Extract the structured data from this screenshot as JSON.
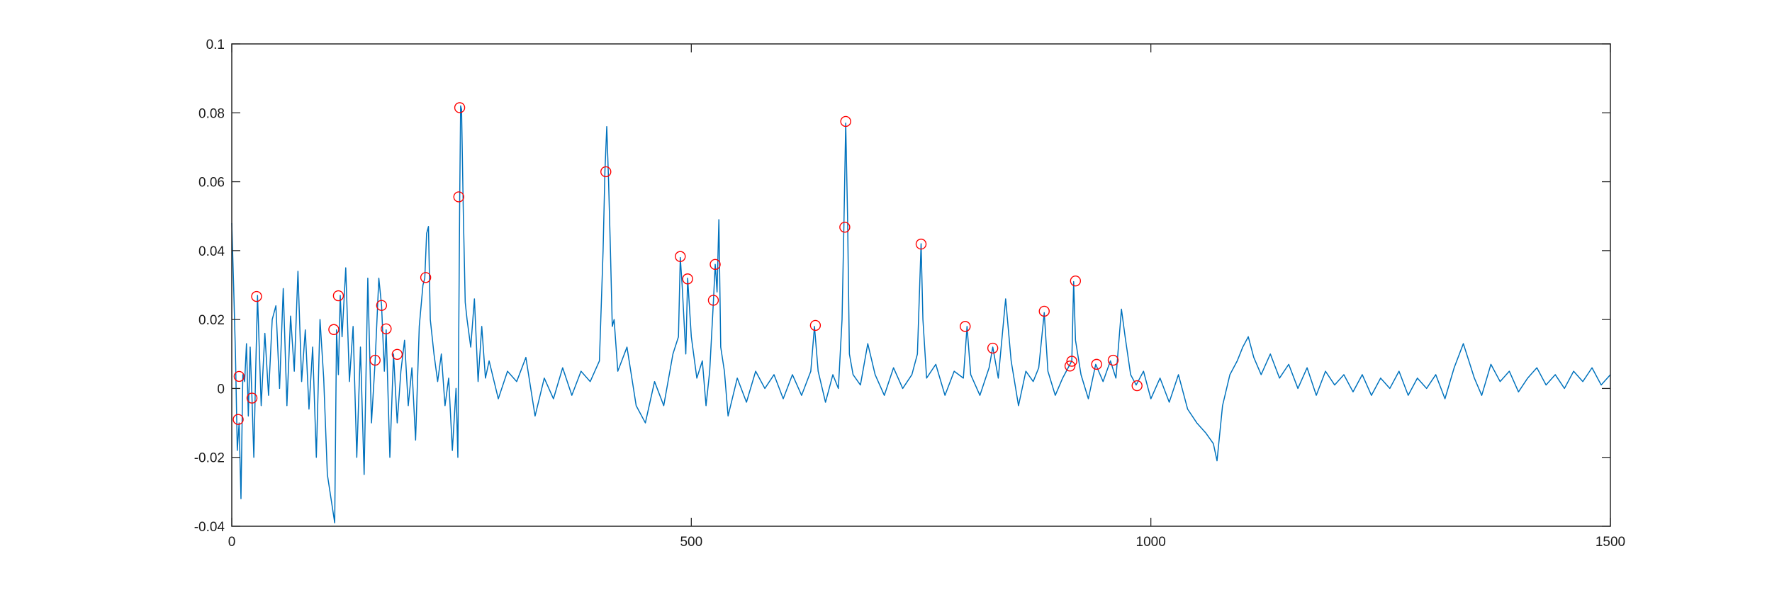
{
  "chart_data": {
    "type": "line",
    "title": "",
    "xlabel": "",
    "ylabel": "",
    "xlim": [
      0,
      1500
    ],
    "ylim": [
      -0.04,
      0.1
    ],
    "xticks": [
      0,
      500,
      1000,
      1500
    ],
    "yticks": [
      -0.04,
      -0.02,
      0,
      0.02,
      0.04,
      0.06,
      0.08,
      0.1
    ],
    "xtick_labels": [
      "0",
      "500",
      "1000",
      "1500"
    ],
    "ytick_labels": [
      "-0.04",
      "-0.02",
      "0",
      "0.02",
      "0.04",
      "0.06",
      "0.08",
      "0.1"
    ],
    "grid": false,
    "box": true,
    "colors": {
      "line": "#0072BD",
      "markers": "#FF0000",
      "axes": "#262626"
    },
    "series": [
      {
        "style": "line",
        "points": [
          [
            0,
            0.048
          ],
          [
            2,
            0.03
          ],
          [
            4,
            0.01
          ],
          [
            6,
            -0.018
          ],
          [
            8,
            -0.01
          ],
          [
            10,
            -0.032
          ],
          [
            12,
            0.004
          ],
          [
            14,
            0.002
          ],
          [
            16,
            0.013
          ],
          [
            18,
            -0.008
          ],
          [
            20,
            0.012
          ],
          [
            22,
            -0.003
          ],
          [
            24,
            -0.02
          ],
          [
            26,
            0.005
          ],
          [
            28,
            0.027
          ],
          [
            32,
            -0.005
          ],
          [
            36,
            0.016
          ],
          [
            40,
            -0.002
          ],
          [
            44,
            0.02
          ],
          [
            48,
            0.024
          ],
          [
            52,
            0.0
          ],
          [
            56,
            0.029
          ],
          [
            60,
            -0.005
          ],
          [
            64,
            0.021
          ],
          [
            68,
            0.005
          ],
          [
            72,
            0.034
          ],
          [
            76,
            0.002
          ],
          [
            80,
            0.017
          ],
          [
            84,
            -0.006
          ],
          [
            88,
            0.012
          ],
          [
            92,
            -0.02
          ],
          [
            96,
            0.02
          ],
          [
            100,
            0.003
          ],
          [
            104,
            -0.025
          ],
          [
            108,
            -0.032
          ],
          [
            112,
            -0.039
          ],
          [
            114,
            0.017
          ],
          [
            116,
            0.004
          ],
          [
            118,
            0.027
          ],
          [
            120,
            0.015
          ],
          [
            124,
            0.035
          ],
          [
            128,
            0.002
          ],
          [
            132,
            0.018
          ],
          [
            136,
            -0.02
          ],
          [
            140,
            0.012
          ],
          [
            144,
            -0.025
          ],
          [
            148,
            0.032
          ],
          [
            152,
            -0.01
          ],
          [
            156,
            0.008
          ],
          [
            160,
            0.032
          ],
          [
            163,
            0.024
          ],
          [
            166,
            0.005
          ],
          [
            168,
            0.017
          ],
          [
            172,
            -0.02
          ],
          [
            176,
            0.01
          ],
          [
            180,
            -0.01
          ],
          [
            184,
            0.005
          ],
          [
            188,
            0.014
          ],
          [
            192,
            -0.005
          ],
          [
            196,
            0.006
          ],
          [
            200,
            -0.015
          ],
          [
            204,
            0.018
          ],
          [
            208,
            0.03
          ],
          [
            210,
            0.032
          ],
          [
            212,
            0.045
          ],
          [
            214,
            0.047
          ],
          [
            216,
            0.02
          ],
          [
            220,
            0.01
          ],
          [
            224,
            0.002
          ],
          [
            228,
            0.01
          ],
          [
            232,
            -0.005
          ],
          [
            236,
            0.003
          ],
          [
            240,
            -0.018
          ],
          [
            244,
            0.0
          ],
          [
            246,
            -0.02
          ],
          [
            248,
            0.055
          ],
          [
            249,
            0.082
          ],
          [
            250,
            0.081
          ],
          [
            252,
            0.05
          ],
          [
            254,
            0.025
          ],
          [
            256,
            0.02
          ],
          [
            260,
            0.012
          ],
          [
            264,
            0.026
          ],
          [
            268,
            0.002
          ],
          [
            272,
            0.018
          ],
          [
            276,
            0.003
          ],
          [
            280,
            0.008
          ],
          [
            290,
            -0.003
          ],
          [
            300,
            0.005
          ],
          [
            310,
            0.002
          ],
          [
            320,
            0.009
          ],
          [
            330,
            -0.008
          ],
          [
            340,
            0.003
          ],
          [
            350,
            -0.003
          ],
          [
            360,
            0.006
          ],
          [
            370,
            -0.002
          ],
          [
            380,
            0.005
          ],
          [
            390,
            0.002
          ],
          [
            400,
            0.008
          ],
          [
            404,
            0.04
          ],
          [
            406,
            0.063
          ],
          [
            408,
            0.076
          ],
          [
            410,
            0.06
          ],
          [
            412,
            0.04
          ],
          [
            414,
            0.018
          ],
          [
            416,
            0.02
          ],
          [
            420,
            0.005
          ],
          [
            430,
            0.012
          ],
          [
            440,
            -0.005
          ],
          [
            450,
            -0.01
          ],
          [
            460,
            0.002
          ],
          [
            470,
            -0.005
          ],
          [
            480,
            0.01
          ],
          [
            486,
            0.015
          ],
          [
            488,
            0.038
          ],
          [
            490,
            0.03
          ],
          [
            492,
            0.02
          ],
          [
            494,
            0.01
          ],
          [
            496,
            0.032
          ],
          [
            500,
            0.015
          ],
          [
            506,
            0.003
          ],
          [
            512,
            0.008
          ],
          [
            516,
            -0.005
          ],
          [
            520,
            0.005
          ],
          [
            524,
            0.025
          ],
          [
            526,
            0.036
          ],
          [
            528,
            0.028
          ],
          [
            530,
            0.049
          ],
          [
            532,
            0.012
          ],
          [
            536,
            0.005
          ],
          [
            540,
            -0.008
          ],
          [
            550,
            0.003
          ],
          [
            560,
            -0.004
          ],
          [
            570,
            0.005
          ],
          [
            580,
            0.0
          ],
          [
            590,
            0.004
          ],
          [
            600,
            -0.003
          ],
          [
            610,
            0.004
          ],
          [
            620,
            -0.002
          ],
          [
            630,
            0.005
          ],
          [
            634,
            0.018
          ],
          [
            638,
            0.005
          ],
          [
            646,
            -0.004
          ],
          [
            654,
            0.004
          ],
          [
            660,
            0.0
          ],
          [
            664,
            0.02
          ],
          [
            666,
            0.047
          ],
          [
            668,
            0.077
          ],
          [
            670,
            0.05
          ],
          [
            672,
            0.01
          ],
          [
            676,
            0.004
          ],
          [
            684,
            0.001
          ],
          [
            692,
            0.013
          ],
          [
            700,
            0.004
          ],
          [
            710,
            -0.002
          ],
          [
            720,
            0.006
          ],
          [
            730,
            0.0
          ],
          [
            740,
            0.004
          ],
          [
            746,
            0.01
          ],
          [
            750,
            0.042
          ],
          [
            752,
            0.02
          ],
          [
            756,
            0.003
          ],
          [
            766,
            0.007
          ],
          [
            776,
            -0.002
          ],
          [
            786,
            0.005
          ],
          [
            796,
            0.003
          ],
          [
            800,
            0.018
          ],
          [
            804,
            0.004
          ],
          [
            814,
            -0.002
          ],
          [
            824,
            0.006
          ],
          [
            828,
            0.012
          ],
          [
            834,
            0.003
          ],
          [
            842,
            0.026
          ],
          [
            848,
            0.008
          ],
          [
            856,
            -0.005
          ],
          [
            864,
            0.005
          ],
          [
            872,
            0.002
          ],
          [
            878,
            0.006
          ],
          [
            884,
            0.022
          ],
          [
            888,
            0.005
          ],
          [
            896,
            -0.002
          ],
          [
            904,
            0.003
          ],
          [
            910,
            0.006
          ],
          [
            914,
            0.008
          ],
          [
            916,
            0.031
          ],
          [
            918,
            0.014
          ],
          [
            924,
            0.004
          ],
          [
            932,
            -0.003
          ],
          [
            940,
            0.007
          ],
          [
            948,
            0.002
          ],
          [
            956,
            0.008
          ],
          [
            962,
            0.003
          ],
          [
            968,
            0.023
          ],
          [
            972,
            0.015
          ],
          [
            978,
            0.004
          ],
          [
            984,
            0.001
          ],
          [
            992,
            0.005
          ],
          [
            1000,
            -0.003
          ],
          [
            1010,
            0.003
          ],
          [
            1020,
            -0.004
          ],
          [
            1030,
            0.004
          ],
          [
            1040,
            -0.006
          ],
          [
            1050,
            -0.01
          ],
          [
            1060,
            -0.013
          ],
          [
            1068,
            -0.016
          ],
          [
            1072,
            -0.021
          ],
          [
            1078,
            -0.005
          ],
          [
            1086,
            0.004
          ],
          [
            1094,
            0.008
          ],
          [
            1100,
            0.012
          ],
          [
            1106,
            0.015
          ],
          [
            1112,
            0.009
          ],
          [
            1120,
            0.004
          ],
          [
            1130,
            0.01
          ],
          [
            1140,
            0.003
          ],
          [
            1150,
            0.007
          ],
          [
            1160,
            0.0
          ],
          [
            1170,
            0.006
          ],
          [
            1180,
            -0.002
          ],
          [
            1190,
            0.005
          ],
          [
            1200,
            0.001
          ],
          [
            1210,
            0.004
          ],
          [
            1220,
            -0.001
          ],
          [
            1230,
            0.004
          ],
          [
            1240,
            -0.002
          ],
          [
            1250,
            0.003
          ],
          [
            1260,
            0.0
          ],
          [
            1270,
            0.005
          ],
          [
            1280,
            -0.002
          ],
          [
            1290,
            0.003
          ],
          [
            1300,
            0.0
          ],
          [
            1310,
            0.004
          ],
          [
            1320,
            -0.003
          ],
          [
            1330,
            0.006
          ],
          [
            1340,
            0.013
          ],
          [
            1346,
            0.008
          ],
          [
            1352,
            0.003
          ],
          [
            1360,
            -0.002
          ],
          [
            1370,
            0.007
          ],
          [
            1380,
            0.002
          ],
          [
            1390,
            0.005
          ],
          [
            1400,
            -0.001
          ],
          [
            1410,
            0.003
          ],
          [
            1420,
            0.006
          ],
          [
            1430,
            0.001
          ],
          [
            1440,
            0.004
          ],
          [
            1450,
            0.0
          ],
          [
            1460,
            0.005
          ],
          [
            1470,
            0.002
          ],
          [
            1480,
            0.006
          ],
          [
            1490,
            0.001
          ],
          [
            1500,
            0.004
          ]
        ]
      },
      {
        "style": "markers",
        "marker": "circle",
        "points": [
          [
            7,
            -0.009
          ],
          [
            8,
            0.0035
          ],
          [
            22,
            -0.0028
          ],
          [
            27,
            0.0267
          ],
          [
            111,
            0.0171
          ],
          [
            116,
            0.0269
          ],
          [
            156,
            0.0082
          ],
          [
            163,
            0.0241
          ],
          [
            168,
            0.0173
          ],
          [
            180,
            0.0099
          ],
          [
            211,
            0.0322
          ],
          [
            247,
            0.0556
          ],
          [
            248,
            0.0815
          ],
          [
            407,
            0.0629
          ],
          [
            488,
            0.0383
          ],
          [
            496,
            0.0318
          ],
          [
            524,
            0.0256
          ],
          [
            526,
            0.036
          ],
          [
            635,
            0.0183
          ],
          [
            667,
            0.0468
          ],
          [
            668,
            0.0775
          ],
          [
            750,
            0.0419
          ],
          [
            798,
            0.018
          ],
          [
            828,
            0.0117
          ],
          [
            884,
            0.0224
          ],
          [
            912,
            0.0065
          ],
          [
            914,
            0.0079
          ],
          [
            918,
            0.0312
          ],
          [
            941,
            0.007
          ],
          [
            959,
            0.0082
          ],
          [
            985,
            0.0008
          ]
        ]
      }
    ]
  }
}
